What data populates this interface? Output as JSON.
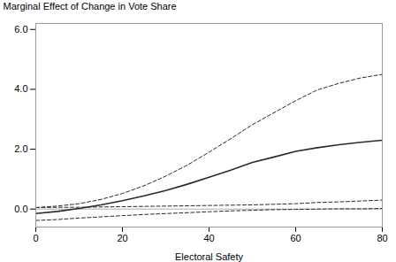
{
  "chart_data": {
    "type": "line",
    "x": [
      0,
      5,
      10,
      15,
      20,
      25,
      30,
      35,
      40,
      45,
      50,
      55,
      60,
      65,
      70,
      75,
      80
    ],
    "series": [
      {
        "color": "#2a2a2a",
        "line_style": "solid",
        "values": [
          -0.15,
          -0.08,
          0.02,
          0.14,
          0.28,
          0.44,
          0.62,
          0.83,
          1.06,
          1.3,
          1.56,
          1.74,
          1.93,
          2.05,
          2.15,
          2.23,
          2.3
        ]
      },
      {
        "color": "#2a2a2a",
        "line_style": "dashed",
        "values": [
          0.05,
          0.1,
          0.18,
          0.32,
          0.52,
          0.78,
          1.1,
          1.47,
          1.9,
          2.35,
          2.82,
          3.22,
          3.62,
          3.98,
          4.2,
          4.38,
          4.5
        ]
      },
      {
        "color": "#2a2a2a",
        "line_style": "dashed",
        "values": [
          0.05,
          0.06,
          0.06,
          0.07,
          0.08,
          0.09,
          0.1,
          0.11,
          0.12,
          0.13,
          0.14,
          0.16,
          0.18,
          0.22,
          0.24,
          0.27,
          0.3
        ]
      },
      {
        "color": "#2a2a2a",
        "line_style": "dashed",
        "values": [
          -0.38,
          -0.35,
          -0.3,
          -0.26,
          -0.22,
          -0.18,
          -0.15,
          -0.12,
          -0.09,
          -0.06,
          -0.04,
          -0.02,
          -0.01,
          0.0,
          0.01,
          0.01,
          0.02
        ]
      }
    ],
    "hline": {
      "y": 0.0,
      "color": "#999999"
    },
    "xlim": [
      0,
      80
    ],
    "ylim": [
      -0.6,
      6.2
    ],
    "xticks": [
      0,
      20,
      40,
      60,
      80
    ],
    "yticks": [
      0,
      2,
      4,
      6
    ],
    "xlabel": "Electoral Safety",
    "ylabel": "Marginal Effect of Change in Vote Share",
    "grid": false
  }
}
